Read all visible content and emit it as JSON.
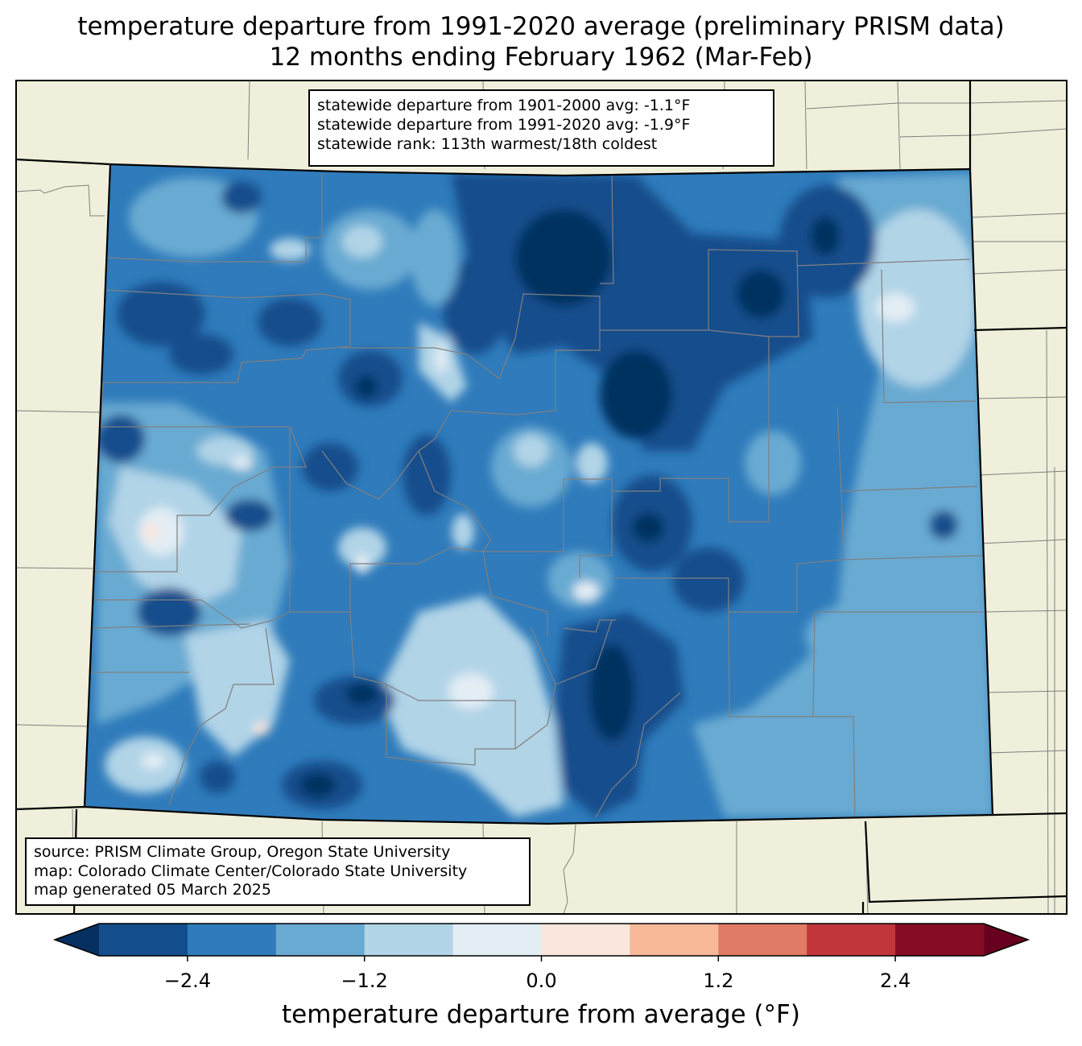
{
  "title": {
    "line1": "temperature departure from 1991-2020 average (preliminary PRISM data)",
    "line2": "12 months ending February 1962 (Mar-Feb)"
  },
  "stats": {
    "line1": "statewide departure from 1901-2000 avg: -1.1°F",
    "line2": "statewide departure from 1991-2020 avg: -1.9°F",
    "line3": "statewide rank: 113th warmest/18th coldest"
  },
  "source": {
    "line1": "source: PRISM Climate Group, Oregon State University",
    "line2": "map: Colorado Climate Center/Colorado State University",
    "line3": "map generated 05 March 2025"
  },
  "colorbar": {
    "label": "temperature departure from average (°F)",
    "bins": [
      -3.0,
      -2.4,
      -1.8,
      -1.2,
      -0.6,
      0.0,
      0.6,
      1.2,
      1.8,
      2.4,
      3.0
    ],
    "ticks": [
      "−2.4",
      "−1.2",
      "0.0",
      "1.2",
      "2.4"
    ],
    "colors": [
      "#134d8c",
      "#2f7bbb",
      "#69aad2",
      "#b1d4e7",
      "#e3edf4",
      "#fae6dc",
      "#f7b898",
      "#e07b65",
      "#c0363a",
      "#860b24"
    ],
    "under_color": "#053061",
    "over_color": "#67001f"
  },
  "map_colors": {
    "land": "#efefdb",
    "state_border": "#000000",
    "county_border": "#808080"
  }
}
